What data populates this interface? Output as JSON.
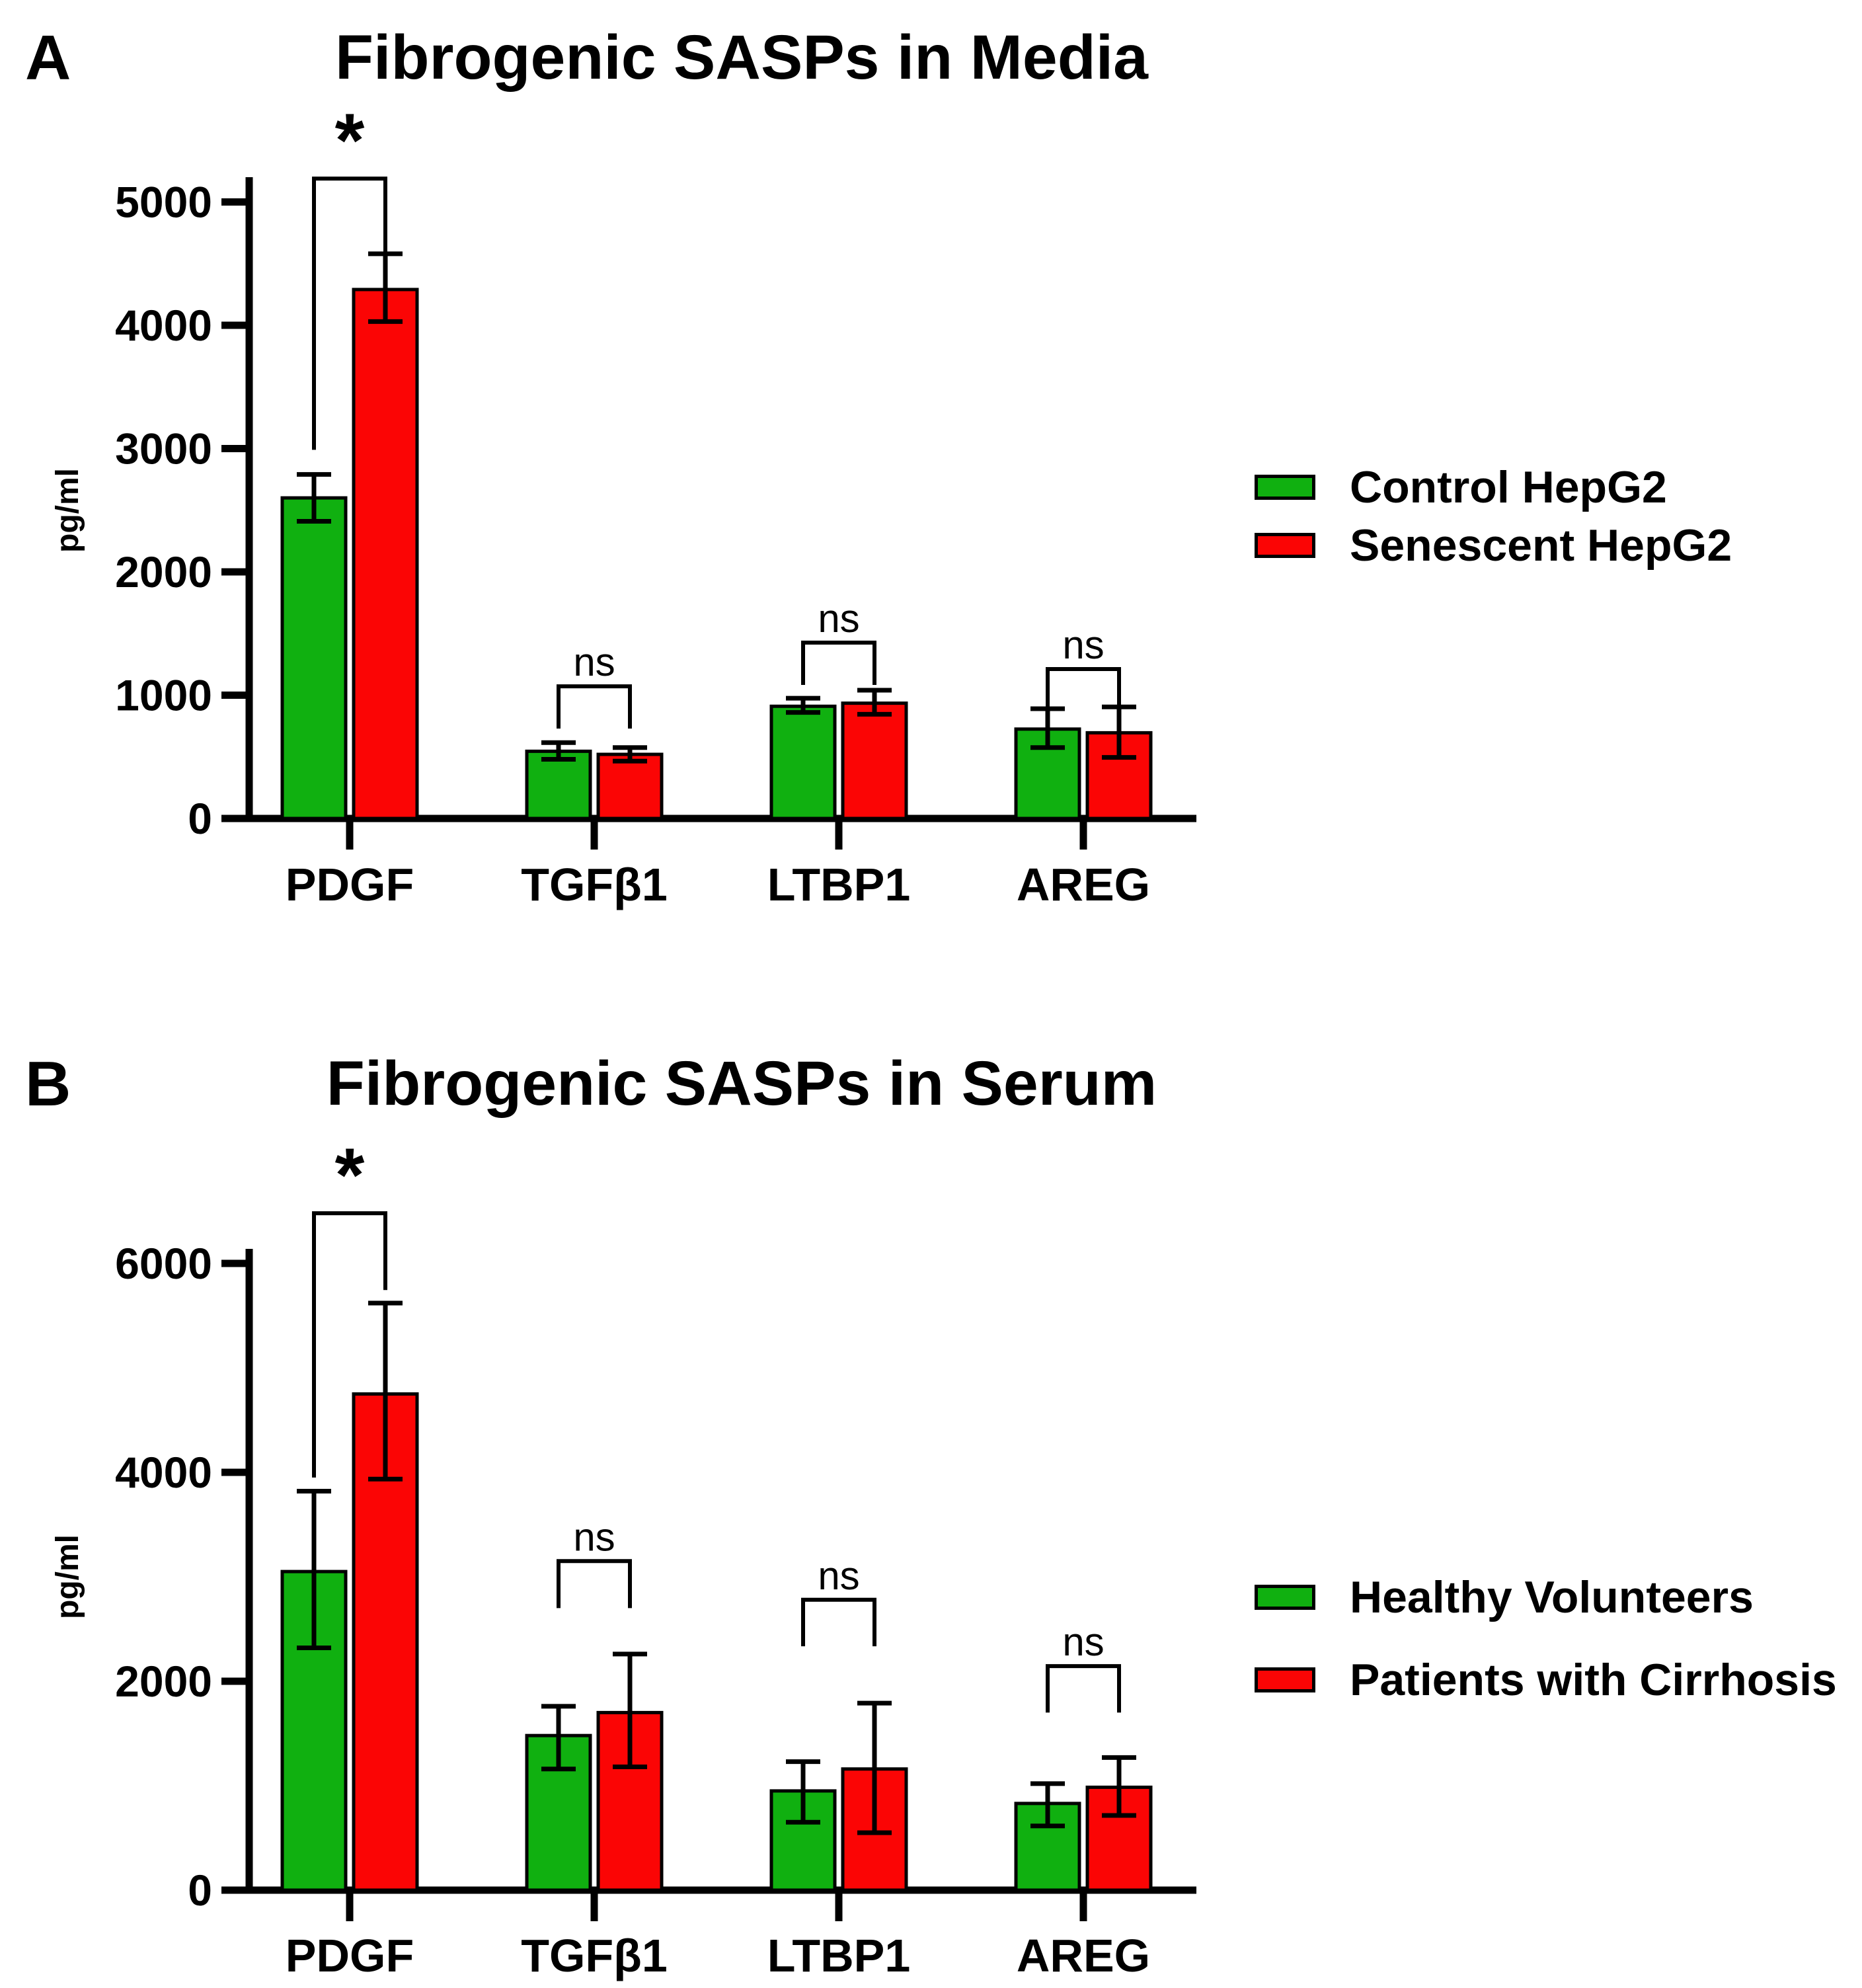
{
  "figure": {
    "background": "#ffffff",
    "text_color": "#000000",
    "axis_color": "#000000"
  },
  "chart_data": [
    {
      "type": "bar",
      "panel_label": "A",
      "title": "Fibrogenic SASPs in Media",
      "ylabel": "pg/ml",
      "ylim": [
        0,
        5000
      ],
      "yticks": [
        0,
        1000,
        2000,
        3000,
        4000,
        5000
      ],
      "categories": [
        "PDGF",
        "TGFβ1",
        "LTBP1",
        "AREG"
      ],
      "grid": false,
      "legend_position": "right",
      "series": [
        {
          "name": "Control HepG2",
          "color": "#10B010",
          "values": [
            2600,
            545,
            910,
            725
          ],
          "err_low": [
            2410,
            480,
            860,
            575
          ],
          "err_high": [
            2790,
            615,
            975,
            890
          ]
        },
        {
          "name": "Senescent HepG2",
          "color": "#FB0505",
          "values": [
            4290,
            520,
            935,
            695
          ],
          "err_low": [
            4030,
            465,
            845,
            495
          ],
          "err_high": [
            4580,
            575,
            1040,
            905
          ]
        }
      ],
      "significance": [
        {
          "category": "PDGF",
          "label": "*",
          "bracket_y": 5190,
          "left_drop_to": 2990,
          "right_drop_to": 4490
        },
        {
          "category": "TGFβ1",
          "label": "ns",
          "bracket_y": 1072,
          "left_drop_to": 729,
          "right_drop_to": 729
        },
        {
          "category": "LTBP1",
          "label": "ns",
          "bracket_y": 1426,
          "left_drop_to": 1083,
          "right_drop_to": 1083
        },
        {
          "category": "AREG",
          "label": "ns",
          "bracket_y": 1212,
          "left_drop_to": 869,
          "right_drop_to": 869
        }
      ]
    },
    {
      "type": "bar",
      "panel_label": "B",
      "title": "Fibrogenic SASPs in Serum",
      "ylabel": "pg/ml",
      "ylim": [
        0,
        6000
      ],
      "yticks": [
        0,
        2000,
        4000,
        6000
      ],
      "categories": [
        "PDGF",
        "TGFβ1",
        "LTBP1",
        "AREG"
      ],
      "grid": false,
      "legend_position": "right",
      "series": [
        {
          "name": "Healthy Volunteers",
          "color": "#10B010",
          "values": [
            3050,
            1480,
            950,
            830
          ],
          "err_low": [
            2320,
            1160,
            650,
            615
          ],
          "err_high": [
            3820,
            1760,
            1230,
            1020
          ]
        },
        {
          "name": "Patients with Cirrhosis",
          "color": "#FB0505",
          "values": [
            4750,
            1700,
            1160,
            985
          ],
          "err_low": [
            3935,
            1180,
            550,
            715
          ],
          "err_high": [
            5620,
            2260,
            1790,
            1270
          ]
        }
      ],
      "significance": [
        {
          "category": "PDGF",
          "label": "*",
          "bracket_y": 6480,
          "left_drop_to": 3950,
          "right_drop_to": 5745
        },
        {
          "category": "TGFβ1",
          "label": "ns",
          "bracket_y": 3150,
          "left_drop_to": 2700,
          "right_drop_to": 2700
        },
        {
          "category": "LTBP1",
          "label": "ns",
          "bracket_y": 2780,
          "left_drop_to": 2335,
          "right_drop_to": 2335
        },
        {
          "category": "AREG",
          "label": "ns",
          "bracket_y": 2145,
          "left_drop_to": 1700,
          "right_drop_to": 1700
        }
      ]
    }
  ]
}
